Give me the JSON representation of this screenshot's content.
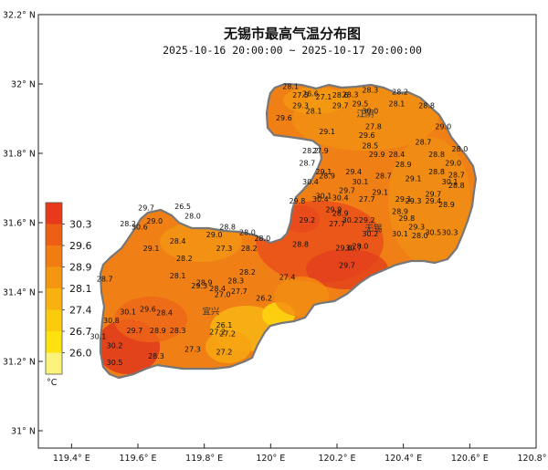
{
  "map": {
    "title": "无锡市最高气温分布图",
    "subtitle": "2025-10-16 20:00:00 ~ 2025-10-17 20:00:00",
    "lat_ticks": [
      {
        "value": 32.2,
        "label": "32.2° N"
      },
      {
        "value": 32.0,
        "label": "32° N"
      },
      {
        "value": 31.8,
        "label": "31.8° N"
      },
      {
        "value": 31.6,
        "label": "31.6° N"
      },
      {
        "value": 31.4,
        "label": "31.4° N"
      },
      {
        "value": 31.2,
        "label": "31.2° N"
      },
      {
        "value": 31.0,
        "label": "31° N"
      }
    ],
    "lon_ticks": [
      {
        "value": 119.4,
        "label": "119.4° E"
      },
      {
        "value": 119.6,
        "label": "119.6° E"
      },
      {
        "value": 119.8,
        "label": "119.8° E"
      },
      {
        "value": 120.0,
        "label": "120° E"
      },
      {
        "value": 120.2,
        "label": "120.2° E"
      },
      {
        "value": 120.4,
        "label": "120.4° E"
      },
      {
        "value": 120.6,
        "label": "120.6° E"
      },
      {
        "value": 120.8,
        "label": "120.8° E"
      }
    ],
    "cities": [
      {
        "name": "江阴",
        "lon": 120.285,
        "lat": 31.905
      },
      {
        "name": "无锡",
        "lon": 120.31,
        "lat": 31.575
      },
      {
        "name": "宜兴",
        "lon": 119.82,
        "lat": 31.335
      }
    ],
    "stations": [
      {
        "v": "28.1",
        "lon": 120.06,
        "lat": 31.985
      },
      {
        "v": "27.5",
        "lon": 120.09,
        "lat": 31.96
      },
      {
        "v": "26.6",
        "lon": 120.12,
        "lat": 31.965
      },
      {
        "v": "27.1",
        "lon": 120.16,
        "lat": 31.955
      },
      {
        "v": "28.6",
        "lon": 120.21,
        "lat": 31.96
      },
      {
        "v": "28.3",
        "lon": 120.24,
        "lat": 31.962
      },
      {
        "v": "28.3",
        "lon": 120.3,
        "lat": 31.975
      },
      {
        "v": "28.2",
        "lon": 120.39,
        "lat": 31.97
      },
      {
        "v": "29.3",
        "lon": 120.09,
        "lat": 31.93
      },
      {
        "v": "29.7",
        "lon": 120.21,
        "lat": 31.93
      },
      {
        "v": "29.5",
        "lon": 120.27,
        "lat": 31.935
      },
      {
        "v": "28.1",
        "lon": 120.38,
        "lat": 31.935
      },
      {
        "v": "28.8",
        "lon": 120.47,
        "lat": 31.93
      },
      {
        "v": "28.1",
        "lon": 120.13,
        "lat": 31.915
      },
      {
        "v": "30.0",
        "lon": 120.3,
        "lat": 31.915
      },
      {
        "v": "29.6",
        "lon": 120.04,
        "lat": 31.895
      },
      {
        "v": "27.8",
        "lon": 120.31,
        "lat": 31.87
      },
      {
        "v": "29.0",
        "lon": 120.52,
        "lat": 31.87
      },
      {
        "v": "29.1",
        "lon": 120.17,
        "lat": 31.855
      },
      {
        "v": "29.6",
        "lon": 120.29,
        "lat": 31.845
      },
      {
        "v": "28.7",
        "lon": 120.46,
        "lat": 31.825
      },
      {
        "v": "28.5",
        "lon": 120.3,
        "lat": 31.815
      },
      {
        "v": "28.0",
        "lon": 120.57,
        "lat": 31.805
      },
      {
        "v": "28.2",
        "lon": 120.12,
        "lat": 31.8
      },
      {
        "v": "27.9",
        "lon": 120.15,
        "lat": 31.8
      },
      {
        "v": "29.9",
        "lon": 120.32,
        "lat": 31.79
      },
      {
        "v": "28.4",
        "lon": 120.38,
        "lat": 31.79
      },
      {
        "v": "28.8",
        "lon": 120.5,
        "lat": 31.79
      },
      {
        "v": "28.7",
        "lon": 120.11,
        "lat": 31.765
      },
      {
        "v": "28.9",
        "lon": 120.4,
        "lat": 31.76
      },
      {
        "v": "29.0",
        "lon": 120.55,
        "lat": 31.765
      },
      {
        "v": "29.1",
        "lon": 120.16,
        "lat": 31.74
      },
      {
        "v": "29.4",
        "lon": 120.25,
        "lat": 31.74
      },
      {
        "v": "28.8",
        "lon": 120.5,
        "lat": 31.74
      },
      {
        "v": "28.7",
        "lon": 120.56,
        "lat": 31.73
      },
      {
        "v": "28.9",
        "lon": 120.17,
        "lat": 31.728
      },
      {
        "v": "28.7",
        "lon": 120.34,
        "lat": 31.728
      },
      {
        "v": "29.1",
        "lon": 120.43,
        "lat": 31.72
      },
      {
        "v": "30.4",
        "lon": 120.12,
        "lat": 31.71
      },
      {
        "v": "30.1",
        "lon": 120.27,
        "lat": 31.71
      },
      {
        "v": "30.1",
        "lon": 120.54,
        "lat": 31.71
      },
      {
        "v": "28.8",
        "lon": 120.56,
        "lat": 31.7
      },
      {
        "v": "29.7",
        "lon": 120.23,
        "lat": 31.685
      },
      {
        "v": "29.1",
        "lon": 120.33,
        "lat": 31.68
      },
      {
        "v": "29.7",
        "lon": 120.49,
        "lat": 31.675
      },
      {
        "v": "30.1",
        "lon": 120.16,
        "lat": 31.67
      },
      {
        "v": "27.7",
        "lon": 120.29,
        "lat": 31.66
      },
      {
        "v": "30.4",
        "lon": 120.15,
        "lat": 31.66
      },
      {
        "v": "30.4",
        "lon": 120.21,
        "lat": 31.665
      },
      {
        "v": "29.1",
        "lon": 120.4,
        "lat": 31.66
      },
      {
        "v": "29.3",
        "lon": 120.43,
        "lat": 31.655
      },
      {
        "v": "29.4",
        "lon": 120.49,
        "lat": 31.655
      },
      {
        "v": "29.8",
        "lon": 120.08,
        "lat": 31.655
      },
      {
        "v": "28.9",
        "lon": 120.53,
        "lat": 31.645
      },
      {
        "v": "29.9",
        "lon": 120.19,
        "lat": 31.63
      },
      {
        "v": "28.9",
        "lon": 120.21,
        "lat": 31.62
      },
      {
        "v": "28.9",
        "lon": 120.39,
        "lat": 31.625
      },
      {
        "v": "29.2",
        "lon": 120.11,
        "lat": 31.6
      },
      {
        "v": "30.2",
        "lon": 120.24,
        "lat": 31.6
      },
      {
        "v": "29.2",
        "lon": 120.29,
        "lat": 31.6
      },
      {
        "v": "29.8",
        "lon": 120.41,
        "lat": 31.605
      },
      {
        "v": "27.7",
        "lon": 120.2,
        "lat": 31.59
      },
      {
        "v": "29.3",
        "lon": 120.44,
        "lat": 31.58
      },
      {
        "v": "30.5",
        "lon": 120.49,
        "lat": 31.565
      },
      {
        "v": "30.3",
        "lon": 120.54,
        "lat": 31.565
      },
      {
        "v": "28.0",
        "lon": 120.45,
        "lat": 31.555
      },
      {
        "v": "30.2",
        "lon": 120.3,
        "lat": 31.56
      },
      {
        "v": "30.1",
        "lon": 120.39,
        "lat": 31.56
      },
      {
        "v": "28.8",
        "lon": 120.09,
        "lat": 31.53
      },
      {
        "v": "29.6",
        "lon": 120.22,
        "lat": 31.52
      },
      {
        "v": "30.7",
        "lon": 120.25,
        "lat": 31.52
      },
      {
        "v": "28.0",
        "lon": 120.27,
        "lat": 31.525
      },
      {
        "v": "29.7",
        "lon": 120.23,
        "lat": 31.47
      },
      {
        "v": "27.4",
        "lon": 120.05,
        "lat": 31.435
      },
      {
        "v": "26.2",
        "lon": 119.98,
        "lat": 31.375
      },
      {
        "v": "29.7",
        "lon": 119.625,
        "lat": 31.635
      },
      {
        "v": "26.5",
        "lon": 119.735,
        "lat": 31.64
      },
      {
        "v": "28.0",
        "lon": 119.765,
        "lat": 31.612
      },
      {
        "v": "28.2",
        "lon": 119.57,
        "lat": 31.59
      },
      {
        "v": "29.0",
        "lon": 119.65,
        "lat": 31.598
      },
      {
        "v": "30.6",
        "lon": 119.605,
        "lat": 31.58
      },
      {
        "v": "28.8",
        "lon": 119.87,
        "lat": 31.58
      },
      {
        "v": "28.0",
        "lon": 119.93,
        "lat": 31.565
      },
      {
        "v": "29.0",
        "lon": 119.83,
        "lat": 31.558
      },
      {
        "v": "28.0",
        "lon": 119.975,
        "lat": 31.548
      },
      {
        "v": "28.4",
        "lon": 119.72,
        "lat": 31.54
      },
      {
        "v": "29.1",
        "lon": 119.64,
        "lat": 31.518
      },
      {
        "v": "27.3",
        "lon": 119.86,
        "lat": 31.518
      },
      {
        "v": "28.2",
        "lon": 119.935,
        "lat": 31.518
      },
      {
        "v": "28.2",
        "lon": 119.74,
        "lat": 31.49
      },
      {
        "v": "28.2",
        "lon": 119.93,
        "lat": 31.45
      },
      {
        "v": "28.7",
        "lon": 119.5,
        "lat": 31.43
      },
      {
        "v": "28.1",
        "lon": 119.72,
        "lat": 31.44
      },
      {
        "v": "28.9",
        "lon": 119.8,
        "lat": 31.42
      },
      {
        "v": "29.3",
        "lon": 119.785,
        "lat": 31.41
      },
      {
        "v": "28.4",
        "lon": 119.84,
        "lat": 31.402
      },
      {
        "v": "28.3",
        "lon": 119.895,
        "lat": 31.425
      },
      {
        "v": "27.7",
        "lon": 119.905,
        "lat": 31.395
      },
      {
        "v": "27.0",
        "lon": 119.855,
        "lat": 31.385
      },
      {
        "v": "29.6",
        "lon": 119.63,
        "lat": 31.343
      },
      {
        "v": "30.1",
        "lon": 119.57,
        "lat": 31.335
      },
      {
        "v": "28.4",
        "lon": 119.68,
        "lat": 31.333
      },
      {
        "v": "30.8",
        "lon": 119.52,
        "lat": 31.31
      },
      {
        "v": "29.7",
        "lon": 119.59,
        "lat": 31.282
      },
      {
        "v": "28.9",
        "lon": 119.66,
        "lat": 31.282
      },
      {
        "v": "28.3",
        "lon": 119.72,
        "lat": 31.282
      },
      {
        "v": "26.1",
        "lon": 119.86,
        "lat": 31.297
      },
      {
        "v": "27.2",
        "lon": 119.84,
        "lat": 31.277
      },
      {
        "v": "27.2",
        "lon": 119.87,
        "lat": 31.272
      },
      {
        "v": "30.1",
        "lon": 119.48,
        "lat": 31.265
      },
      {
        "v": "30.2",
        "lon": 119.53,
        "lat": 31.238
      },
      {
        "v": "27.3",
        "lon": 119.765,
        "lat": 31.228
      },
      {
        "v": "27.2",
        "lon": 119.86,
        "lat": 31.22
      },
      {
        "v": "28.3",
        "lon": 119.655,
        "lat": 31.208
      },
      {
        "v": "30.5",
        "lon": 119.53,
        "lat": 31.19
      }
    ]
  },
  "legend": {
    "unit": "°C",
    "labels": [
      "30.3",
      "29.6",
      "28.9",
      "28.1",
      "27.4",
      "26.7",
      "26.0"
    ],
    "colors": [
      "#e83a1a",
      "#ee5f16",
      "#f17c12",
      "#f4960f",
      "#f8b10e",
      "#fbcb0e",
      "#fde20f",
      "#faf27a"
    ]
  },
  "colors": {
    "border": "#777777",
    "water": "#ffffff"
  }
}
